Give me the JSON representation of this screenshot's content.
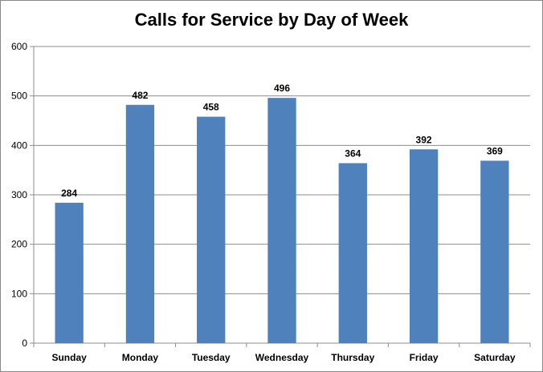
{
  "chart_data": {
    "type": "bar",
    "title": "Calls for Service by Day of Week",
    "xlabel": "",
    "ylabel": "",
    "categories": [
      "Sunday",
      "Monday",
      "Tuesday",
      "Wednesday",
      "Thursday",
      "Friday",
      "Saturday"
    ],
    "values": [
      284,
      482,
      458,
      496,
      364,
      392,
      369
    ],
    "ylim": [
      0,
      600
    ],
    "yticks": [
      0,
      100,
      200,
      300,
      400,
      500,
      600
    ],
    "grid": true,
    "legend": "none",
    "colors": {
      "bar": "#4F81BD",
      "grid": "#8C8C8C",
      "axis": "#8C8C8C"
    }
  }
}
